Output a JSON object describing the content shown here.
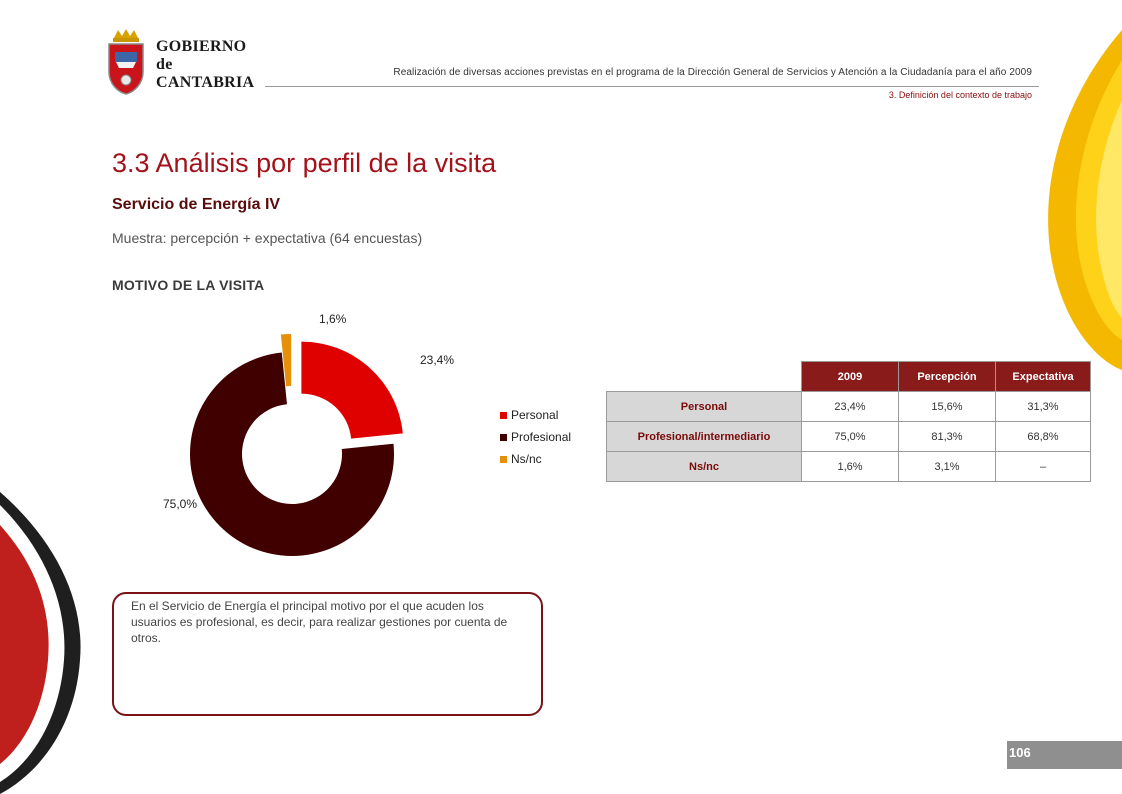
{
  "header": {
    "logo_lines": [
      "GOBIERNO",
      "de",
      "CANTABRIA"
    ],
    "top_text": "Realización de diversas acciones previstas en el programa de la Dirección General de Servicios y Atención a la Ciudadanía para el año 2009",
    "section_text": "3. Definición del contexto de trabajo"
  },
  "page": {
    "title": "3.3 Análisis por perfil de la visita",
    "subtitle": "Servicio de Energía IV",
    "sample": "Muestra: percepción + expectativa (64 encuestas)",
    "section_label": "MOTIVO DE LA VISITA",
    "page_number": "106"
  },
  "colors": {
    "personal": "#df0000",
    "profesional": "#400000",
    "nsnc": "#e6900a",
    "accent": "#a3131b"
  },
  "chart_data": {
    "type": "pie",
    "title": "",
    "donut": true,
    "labels": [
      "Personal",
      "Profesional",
      "Ns/nc"
    ],
    "values": [
      23.4,
      75.0,
      1.6
    ],
    "value_labels": [
      "23,4%",
      "75,0%",
      "1,6%"
    ],
    "legend_placement": "right"
  },
  "table": {
    "headers": [
      "2009",
      "Percepción",
      "Expectativa"
    ],
    "rows": [
      {
        "label": "Personal",
        "values": [
          "23,4%",
          "15,6%",
          "31,3%"
        ]
      },
      {
        "label": "Profesional/intermediario",
        "values": [
          "75,0%",
          "81,3%",
          "68,8%"
        ]
      },
      {
        "label": "Ns/nc",
        "values": [
          "1,6%",
          "3,1%",
          "–"
        ]
      }
    ]
  },
  "comment": "En el Servicio de Energía el principal motivo por el que acuden los usuarios es profesional, es decir, para realizar  gestiones por cuenta de otros."
}
